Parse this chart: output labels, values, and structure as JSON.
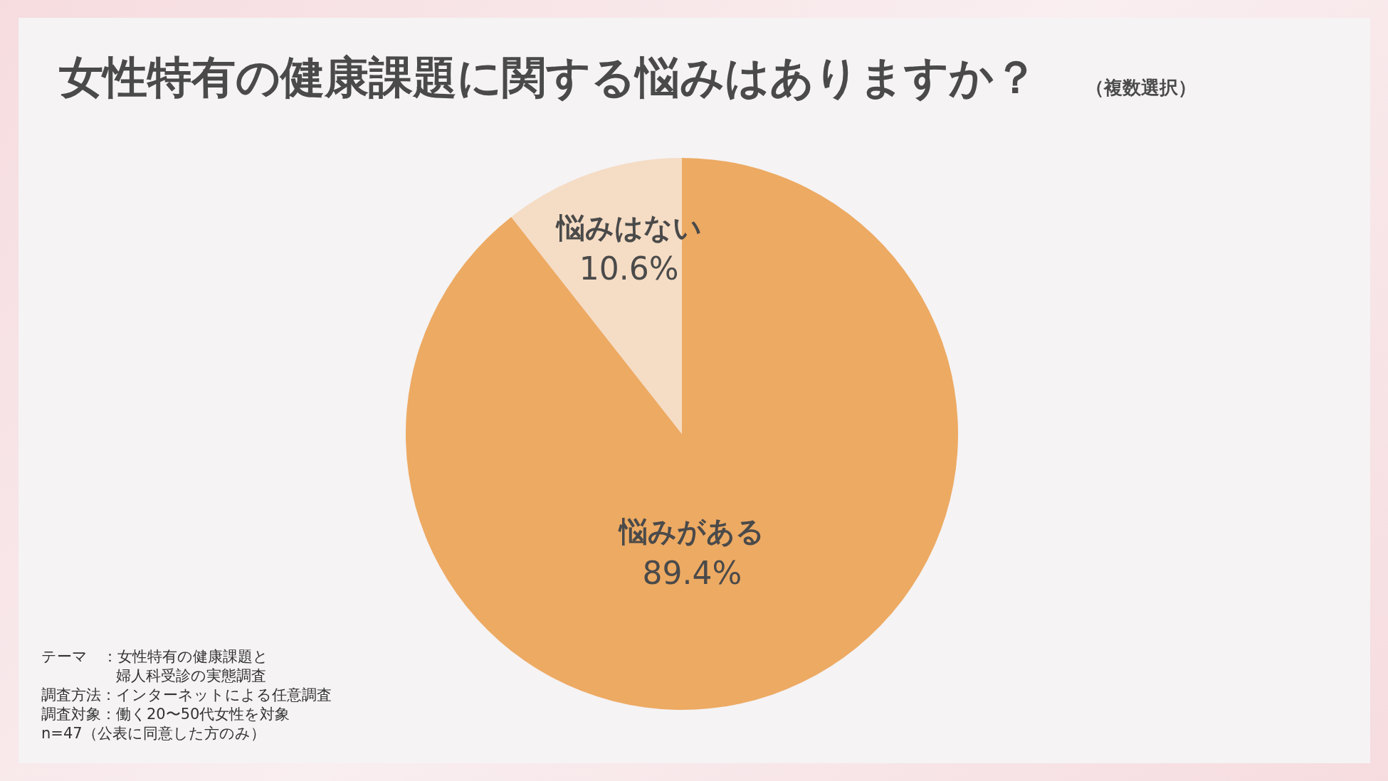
{
  "chart_data": {
    "type": "pie",
    "title": "女性特有の健康課題に関する悩みはありますか？",
    "subtitle": "（複数選択）",
    "categories": [
      "悩みがある",
      "悩みはない"
    ],
    "values": [
      89.4,
      10.6
    ],
    "colors": [
      "#edaa63",
      "#f5dcc4"
    ],
    "value_labels": [
      "89.4%",
      "10.6%"
    ],
    "legend": false,
    "annotations": [
      "テーマ　：女性特有の健康課題と",
      "　　　　　婦人科受診の実態調査",
      "調査方法：インターネットによる任意調査",
      "調査対象：働く20〜50代女性を対象",
      "n=47（公表に同意した方のみ）"
    ]
  }
}
